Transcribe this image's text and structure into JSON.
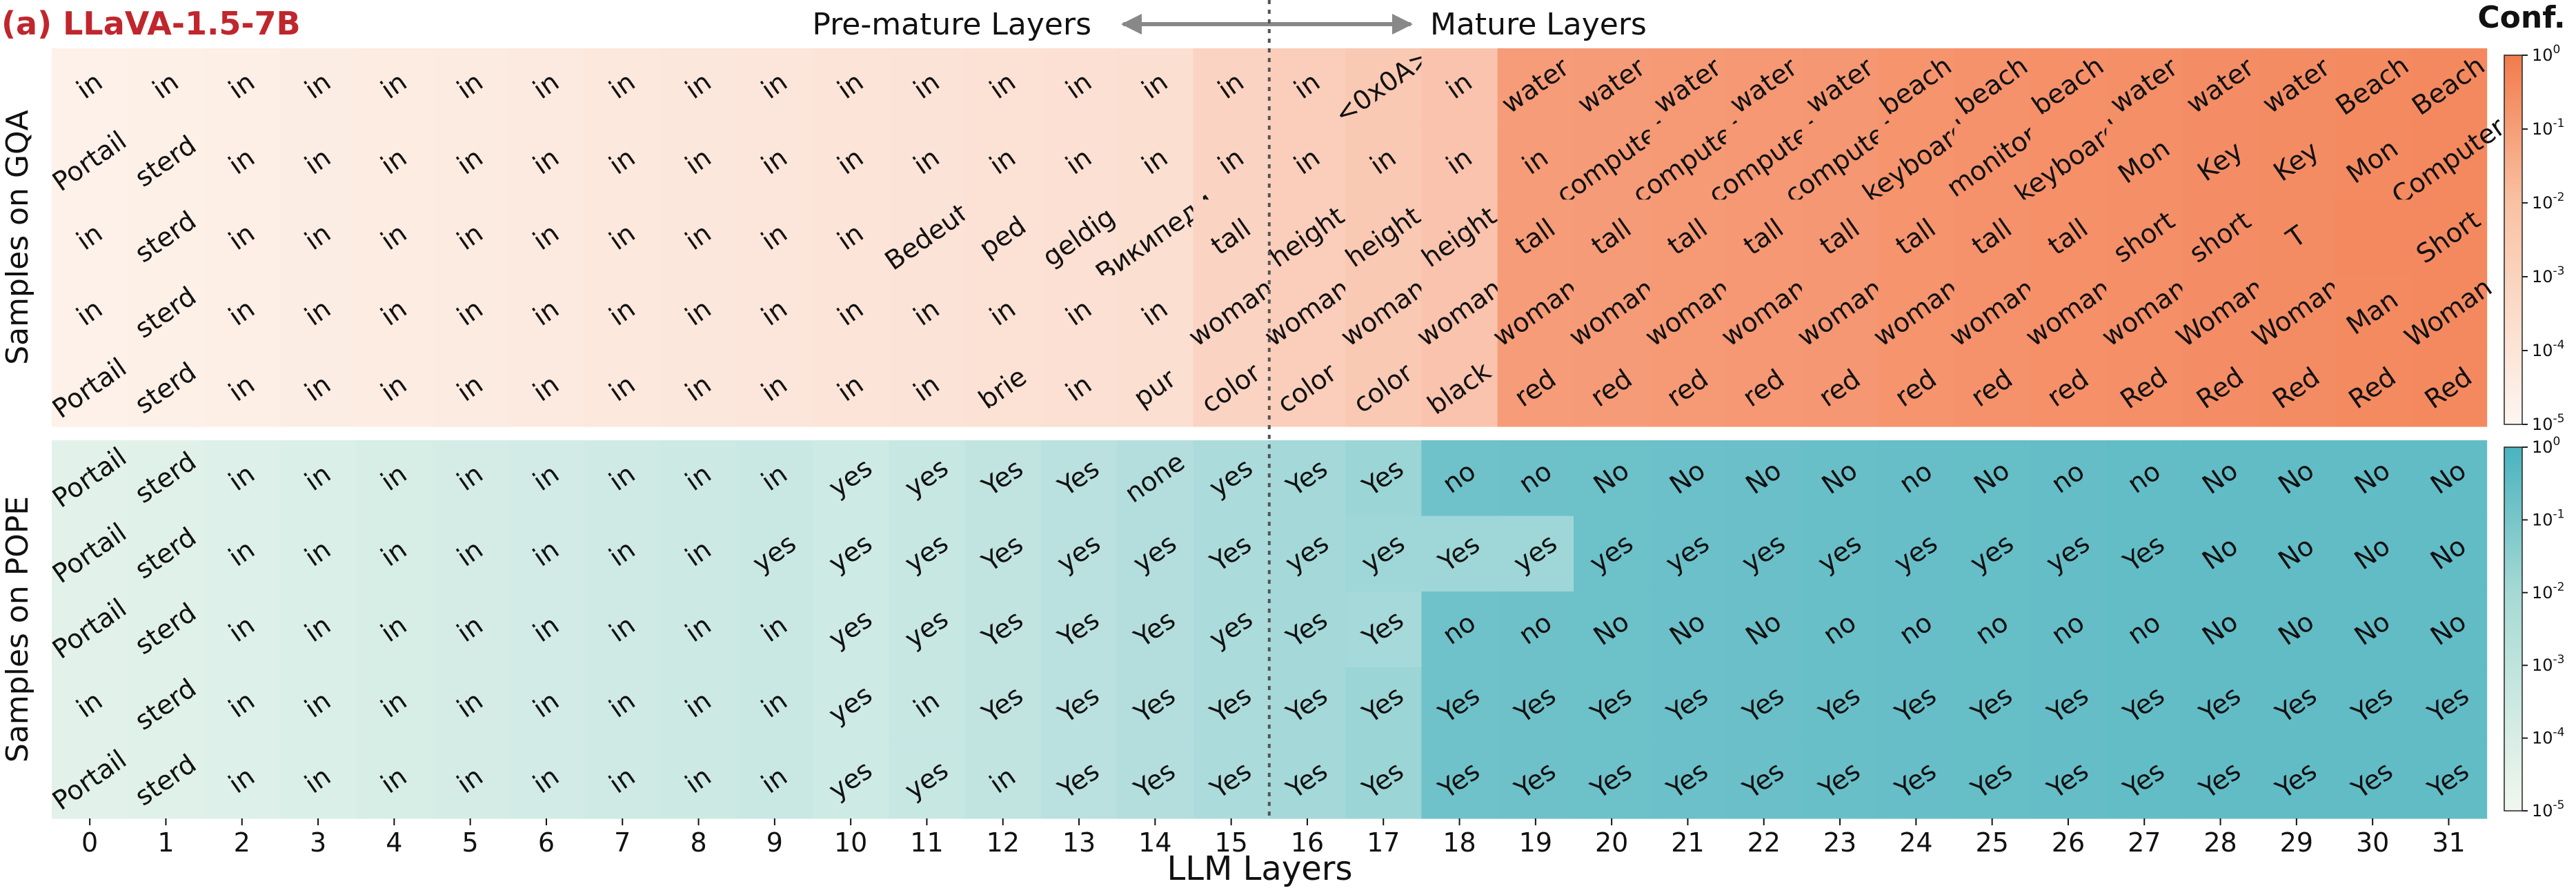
{
  "chart_data": {
    "type": "heatmap",
    "title": "(a) LLaVA-1.5-7B",
    "xlabel": "LLM Layers",
    "x": [
      "0",
      "1",
      "2",
      "3",
      "4",
      "5",
      "6",
      "7",
      "8",
      "9",
      "10",
      "11",
      "12",
      "13",
      "14",
      "15",
      "16",
      "17",
      "18",
      "19",
      "20",
      "21",
      "22",
      "23",
      "24",
      "25",
      "26",
      "27",
      "28",
      "29",
      "30",
      "31"
    ],
    "annotations": {
      "premature": "Pre-mature Layers",
      "mature": "Mature Layers"
    },
    "colorbar_label": "Conf.",
    "colorbar_ticks": [
      "10^0",
      "10^-1",
      "10^-2",
      "10^-3",
      "10^-4",
      "10^-5"
    ],
    "colorbar_scale": "log",
    "colorbar_range": [
      1e-05,
      1
    ],
    "panels": [
      {
        "ylabel": "Samples on GQA",
        "colormap": "orange",
        "rows": [
          [
            "in",
            "in",
            "in",
            "in",
            "in",
            "in",
            "in",
            "in",
            "in",
            "in",
            "in",
            "in",
            "in",
            "in",
            "in",
            "in",
            "in",
            "<0x0A>",
            "in",
            "water",
            "water",
            "water",
            "water",
            "water",
            "beach",
            "beach",
            "beach",
            "water",
            "water",
            "water",
            "Beach",
            "Beach"
          ],
          [
            "Portail",
            "sterd",
            "in",
            "in",
            "in",
            "in",
            "in",
            "in",
            "in",
            "in",
            "in",
            "in",
            "in",
            "in",
            "in",
            "in",
            "in",
            "in",
            "in",
            "in",
            "computer",
            "computer",
            "computer",
            "computer",
            "keyboard",
            "monitor",
            "keyboard",
            "Mon",
            "Key",
            "Key",
            "Mon",
            "Computer"
          ],
          [
            "in",
            "sterd",
            "in",
            "in",
            "in",
            "in",
            "in",
            "in",
            "in",
            "in",
            "in",
            "Bedeut",
            "ped",
            "geldig",
            "Википеди",
            "tall",
            "height",
            "height",
            "height",
            "tall",
            "tall",
            "tall",
            "tall",
            "tall",
            "tall",
            "tall",
            "tall",
            "short",
            "short",
            "T",
            "",
            "Short"
          ],
          [
            "in",
            "sterd",
            "in",
            "in",
            "in",
            "in",
            "in",
            "in",
            "in",
            "in",
            "in",
            "in",
            "in",
            "in",
            "in",
            "woman",
            "woman",
            "woman",
            "woman",
            "woman",
            "woman",
            "woman",
            "woman",
            "woman",
            "woman",
            "woman",
            "woman",
            "woman",
            "Woman",
            "Woman",
            "Man",
            "Woman"
          ],
          [
            "Portail",
            "sterd",
            "in",
            "in",
            "in",
            "in",
            "in",
            "in",
            "in",
            "in",
            "in",
            "in",
            "brie",
            "in",
            "pur",
            "color",
            "color",
            "color",
            "black",
            "red",
            "red",
            "red",
            "red",
            "red",
            "red",
            "red",
            "red",
            "Red",
            "Red",
            "Red",
            "Red",
            "Red"
          ]
        ]
      },
      {
        "ylabel": "Samples on POPE",
        "colormap": "teal",
        "rows": [
          [
            "Portail",
            "sterd",
            "in",
            "in",
            "in",
            "in",
            "in",
            "in",
            "in",
            "in",
            "yes",
            "yes",
            "Yes",
            "Yes",
            "none",
            "yes",
            "Yes",
            "Yes",
            "no",
            "no",
            "No",
            "No",
            "No",
            "No",
            "no",
            "No",
            "no",
            "no",
            "No",
            "No",
            "No",
            "No"
          ],
          [
            "Portail",
            "sterd",
            "in",
            "in",
            "in",
            "in",
            "in",
            "in",
            "in",
            "yes",
            "yes",
            "yes",
            "Yes",
            "yes",
            "yes",
            "Yes",
            "yes",
            "yes",
            "Yes",
            "yes",
            "yes",
            "yes",
            "yes",
            "yes",
            "yes",
            "yes",
            "yes",
            "Yes",
            "No",
            "No",
            "No",
            "No"
          ],
          [
            "Portail",
            "sterd",
            "in",
            "in",
            "in",
            "in",
            "in",
            "in",
            "in",
            "in",
            "yes",
            "yes",
            "Yes",
            "Yes",
            "Yes",
            "yes",
            "Yes",
            "Yes",
            "no",
            "no",
            "No",
            "No",
            "No",
            "no",
            "no",
            "no",
            "no",
            "no",
            "No",
            "No",
            "No",
            "No"
          ],
          [
            "in",
            "sterd",
            "in",
            "in",
            "in",
            "in",
            "in",
            "in",
            "in",
            "in",
            "yes",
            "in",
            "Yes",
            "Yes",
            "Yes",
            "Yes",
            "Yes",
            "Yes",
            "Yes",
            "Yes",
            "Yes",
            "Yes",
            "Yes",
            "Yes",
            "Yes",
            "Yes",
            "Yes",
            "Yes",
            "Yes",
            "Yes",
            "Yes",
            "Yes"
          ],
          [
            "Portail",
            "sterd",
            "in",
            "in",
            "in",
            "in",
            "in",
            "in",
            "in",
            "in",
            "yes",
            "yes",
            "in",
            "Yes",
            "Yes",
            "Yes",
            "Yes",
            "Yes",
            "Yes",
            "Yes",
            "Yes",
            "Yes",
            "Yes",
            "Yes",
            "Yes",
            "Yes",
            "Yes",
            "Yes",
            "Yes",
            "Yes",
            "Yes",
            "Yes"
          ]
        ]
      }
    ],
    "colors": {
      "title": "#c0262d",
      "arrow": "#888888",
      "divider": "#666666",
      "orange_low": "#fdf3ec",
      "orange_high": "#f4895f",
      "teal_low": "#e9f5ec",
      "teal_high": "#62bcc6"
    }
  }
}
